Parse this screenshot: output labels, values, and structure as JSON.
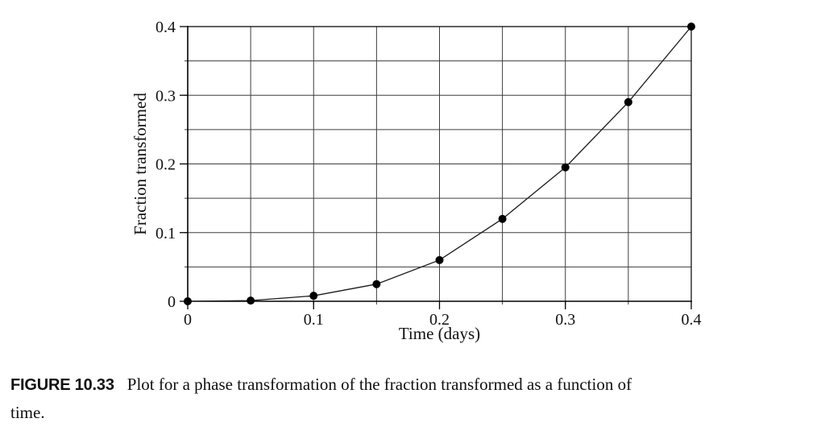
{
  "figure": {
    "label": "FIGURE 10.33",
    "caption_line1": "Plot for a phase transformation of the fraction transformed as a function of",
    "caption_line2": "time."
  },
  "chart_data": {
    "type": "line",
    "title": "",
    "xlabel": "Time (days)",
    "ylabel": "Fraction transformed",
    "x": [
      0,
      0.05,
      0.1,
      0.15,
      0.2,
      0.25,
      0.3,
      0.35,
      0.4
    ],
    "y": [
      0,
      0.001,
      0.008,
      0.025,
      0.06,
      0.12,
      0.195,
      0.29,
      0.4
    ],
    "xlim": [
      0,
      0.4
    ],
    "ylim": [
      0,
      0.4
    ],
    "grid": true,
    "grid_step": 0.05,
    "x_tick_values": [
      0,
      0.1,
      0.2,
      0.3,
      0.4
    ],
    "x_tick_labels": [
      "0",
      "0.1",
      "0.2",
      "0.3",
      "0.4"
    ],
    "y_tick_values": [
      0,
      0.1,
      0.2,
      0.3,
      0.4
    ],
    "y_tick_labels": [
      "0",
      "0.1",
      "0.2",
      "0.3",
      "0.4"
    ],
    "legend": "none",
    "marker": "filled-circle",
    "marker_radius": 5,
    "line_color": "#1a1a1a",
    "marker_color": "#000000",
    "grid_color": "#3d3d3d",
    "axis_color": "#000000"
  }
}
